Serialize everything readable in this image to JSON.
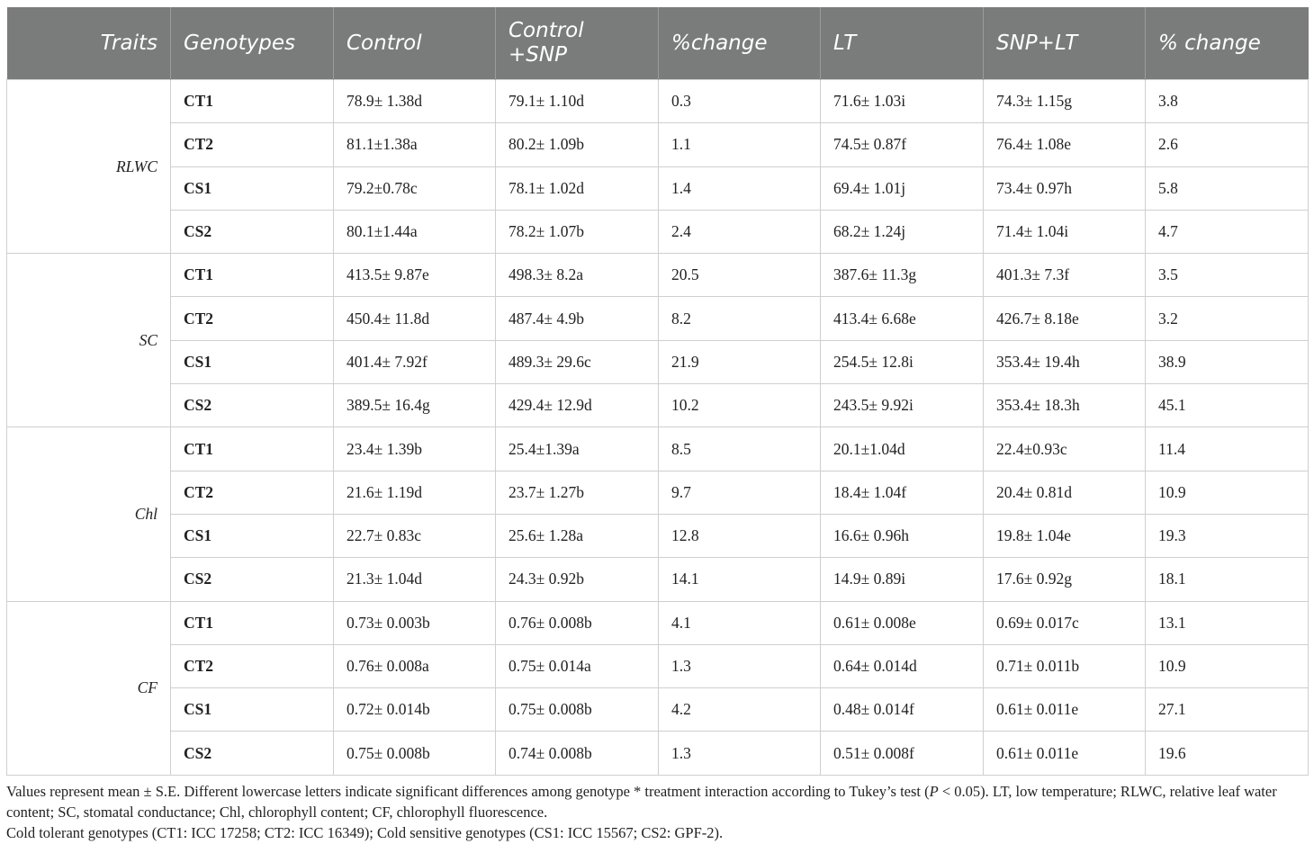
{
  "table": {
    "headers": [
      "Traits",
      "Genotypes",
      "Control",
      "Control +SNP",
      "%change",
      "LT",
      "SNP+LT",
      "% change"
    ],
    "groups": [
      {
        "trait": "RLWC",
        "rows": [
          [
            "CT1",
            "78.9± 1.38d",
            "79.1± 1.10d",
            "0.3",
            "71.6± 1.03i",
            "74.3± 1.15g",
            "3.8"
          ],
          [
            "CT2",
            "81.1±1.38a",
            "80.2± 1.09b",
            "1.1",
            "74.5± 0.87f",
            "76.4± 1.08e",
            "2.6"
          ],
          [
            "CS1",
            "79.2±0.78c",
            "78.1± 1.02d",
            "1.4",
            "69.4± 1.01j",
            "73.4± 0.97h",
            "5.8"
          ],
          [
            "CS2",
            "80.1±1.44a",
            "78.2± 1.07b",
            "2.4",
            "68.2± 1.24j",
            "71.4± 1.04i",
            "4.7"
          ]
        ]
      },
      {
        "trait": "SC",
        "rows": [
          [
            "CT1",
            "413.5± 9.87e",
            "498.3± 8.2a",
            "20.5",
            "387.6± 11.3g",
            "401.3± 7.3f",
            "3.5"
          ],
          [
            "CT2",
            "450.4± 11.8d",
            "487.4± 4.9b",
            "8.2",
            "413.4± 6.68e",
            "426.7± 8.18e",
            "3.2"
          ],
          [
            "CS1",
            "401.4± 7.92f",
            "489.3± 29.6c",
            "21.9",
            "254.5± 12.8i",
            "353.4± 19.4h",
            "38.9"
          ],
          [
            "CS2",
            "389.5± 16.4g",
            "429.4± 12.9d",
            "10.2",
            "243.5± 9.92i",
            "353.4± 18.3h",
            "45.1"
          ]
        ]
      },
      {
        "trait": "Chl",
        "rows": [
          [
            "CT1",
            "23.4± 1.39b",
            "25.4±1.39a",
            "8.5",
            "20.1±1.04d",
            "22.4±0.93c",
            "11.4"
          ],
          [
            "CT2",
            "21.6± 1.19d",
            "23.7± 1.27b",
            "9.7",
            "18.4± 1.04f",
            "20.4± 0.81d",
            "10.9"
          ],
          [
            "CS1",
            "22.7± 0.83c",
            "25.6± 1.28a",
            "12.8",
            "16.6± 0.96h",
            "19.8± 1.04e",
            "19.3"
          ],
          [
            "CS2",
            "21.3± 1.04d",
            "24.3± 0.92b",
            "14.1",
            "14.9± 0.89i",
            "17.6± 0.92g",
            "18.1"
          ]
        ]
      },
      {
        "trait": "CF",
        "rows": [
          [
            "CT1",
            "0.73± 0.003b",
            "0.76± 0.008b",
            "4.1",
            "0.61± 0.008e",
            "0.69± 0.017c",
            "13.1"
          ],
          [
            "CT2",
            "0.76± 0.008a",
            "0.75± 0.014a",
            "1.3",
            "0.64± 0.014d",
            "0.71± 0.011b",
            "10.9"
          ],
          [
            "CS1",
            "0.72± 0.014b",
            "0.75± 0.008b",
            "4.2",
            "0.48± 0.014f",
            "0.61± 0.011e",
            "27.1"
          ],
          [
            "CS2",
            "0.75± 0.008b",
            "0.74± 0.008b",
            "1.3",
            "0.51± 0.008f",
            "0.61± 0.011e",
            "19.6"
          ]
        ]
      }
    ]
  },
  "footnote": {
    "line1_a": "Values represent mean ± S.E. Different lowercase letters indicate significant differences among genotype * treatment interaction according to Tukey’s test (",
    "line1_p": "P",
    "line1_b": " < 0.05). LT, low temperature; RLWC, relative leaf water content; SC, stomatal conductance; Chl, chlorophyll content; CF, chlorophyll fluorescence.",
    "line2": "Cold tolerant genotypes (CT1: ICC 17258; CT2: ICC 16349); Cold sensitive genotypes (CS1: ICC 15567; CS2: GPF-2)."
  }
}
